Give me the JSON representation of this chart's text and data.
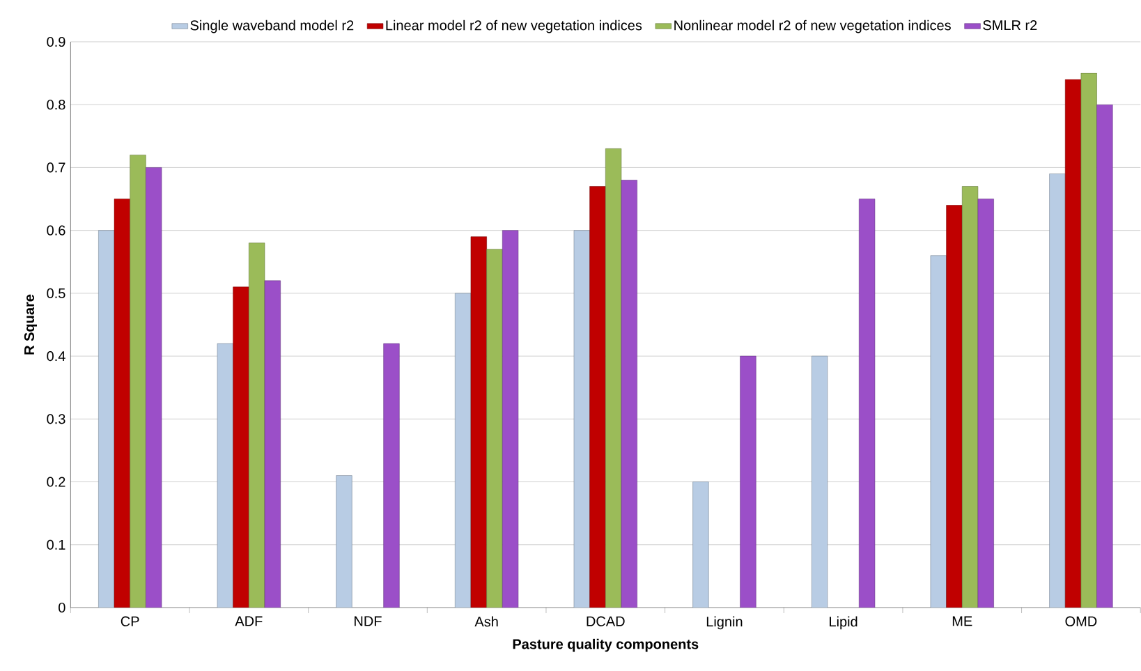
{
  "chart_data": {
    "type": "bar",
    "xlabel": "Pasture quality components",
    "ylabel": "R Square",
    "categories": [
      "CP",
      "ADF",
      "NDF",
      "Ash",
      "DCAD",
      "Lignin",
      "Lipid",
      "ME",
      "OMD"
    ],
    "series": [
      {
        "name": "Single waveband model r2",
        "color": "#b8cce4",
        "values": [
          0.6,
          0.42,
          0.21,
          0.5,
          0.6,
          0.2,
          0.4,
          0.56,
          0.69
        ]
      },
      {
        "name": "Linear model r2 of new vegetation indices",
        "color": "#c00000",
        "values": [
          0.65,
          0.51,
          null,
          0.59,
          0.67,
          null,
          null,
          0.64,
          0.84
        ]
      },
      {
        "name": "Nonlinear model r2 of new vegetation indices",
        "color": "#9bbb59",
        "values": [
          0.72,
          0.58,
          null,
          0.57,
          0.73,
          null,
          null,
          0.67,
          0.85
        ]
      },
      {
        "name": "SMLR r2",
        "color": "#9b4fc8",
        "values": [
          0.7,
          0.52,
          0.42,
          0.6,
          0.68,
          0.4,
          0.65,
          0.65,
          0.8
        ]
      }
    ],
    "ylim": [
      0,
      0.9
    ],
    "yticks": [
      0,
      0.1,
      0.2,
      0.3,
      0.4,
      0.5,
      0.6,
      0.7,
      0.8,
      0.9
    ],
    "grid": "y",
    "legend": "top"
  }
}
